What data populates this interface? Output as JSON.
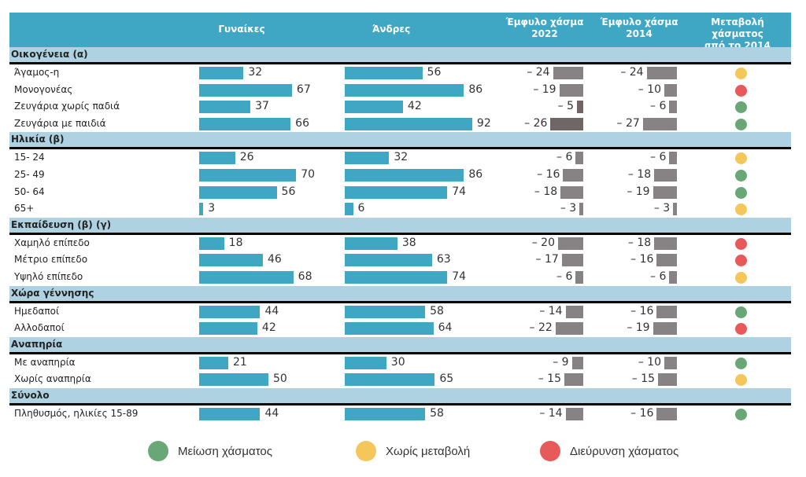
{
  "header": {
    "col_women": "Γυναίκες",
    "col_men": "Άνδρες",
    "col_gap2022_l1": "Έμφυλο χάσμα",
    "col_gap2022_l2": "2022",
    "col_gap2014_l1": "Έμφυλο χάσμα",
    "col_gap2014_l2": "2014",
    "col_change_l1": "Μεταβολή χάσματος",
    "col_change_l2": "από το 2014"
  },
  "colors": {
    "bar": "#3fa7c4",
    "gap_bar": "#878284",
    "gap_bar_dark": "#6f6665",
    "decrease": "#6aa776",
    "no_change": "#f5c75a",
    "increase": "#e85a5a"
  },
  "chart_data": {
    "type": "table",
    "title": "",
    "columns": [
      "Γυναίκες",
      "Άνδρες",
      "Έμφυλο χάσμα 2022",
      "Έμφυλο χάσμα 2014",
      "Μεταβολή χάσματος από το 2014"
    ],
    "sections": [
      {
        "name": "Οικογένεια (α)",
        "rows": [
          {
            "label": "Άγαμος-η",
            "women": 32,
            "men": 56,
            "gap2022": -24,
            "gap2014": -24,
            "change": "no_change",
            "gap2022_dark": false
          },
          {
            "label": "Μονογονέας",
            "women": 67,
            "men": 86,
            "gap2022": -19,
            "gap2014": -10,
            "change": "increase",
            "gap2022_dark": false
          },
          {
            "label": "Ζευγάρια χωρίς παδιά",
            "women": 37,
            "men": 42,
            "gap2022": -5,
            "gap2014": -6,
            "change": "decrease",
            "gap2022_dark": true
          },
          {
            "label": "Ζευγάρια με παιδιά",
            "women": 66,
            "men": 92,
            "gap2022": -26,
            "gap2014": -27,
            "change": "decrease",
            "gap2022_dark": true
          }
        ]
      },
      {
        "name": "Ηλικία (β)",
        "rows": [
          {
            "label": "15- 24",
            "women": 26,
            "men": 32,
            "gap2022": -6,
            "gap2014": -6,
            "change": "no_change"
          },
          {
            "label": "25- 49",
            "women": 70,
            "men": 86,
            "gap2022": -16,
            "gap2014": -18,
            "change": "decrease"
          },
          {
            "label": "50- 64",
            "women": 56,
            "men": 74,
            "gap2022": -18,
            "gap2014": -19,
            "change": "decrease"
          },
          {
            "label": "65+",
            "women": 3,
            "men": 6,
            "gap2022": -3,
            "gap2014": -3,
            "change": "no_change"
          }
        ]
      },
      {
        "name": "Εκπαίδευση (β) (γ)",
        "rows": [
          {
            "label": "Χαμηλό επίπεδο",
            "women": 18,
            "men": 38,
            "gap2022": -20,
            "gap2014": -18,
            "change": "increase"
          },
          {
            "label": "Μέτριο επίπεδο",
            "women": 46,
            "men": 63,
            "gap2022": -17,
            "gap2014": -16,
            "change": "increase"
          },
          {
            "label": "Υψηλό επίπεδο",
            "women": 68,
            "men": 74,
            "gap2022": -6,
            "gap2014": -6,
            "change": "no_change"
          }
        ]
      },
      {
        "name": "Χώρα γέννησης",
        "rows": [
          {
            "label": "Ημεδαποί",
            "women": 44,
            "men": 58,
            "gap2022": -14,
            "gap2014": -16,
            "change": "decrease"
          },
          {
            "label": "Αλλοδαποί",
            "women": 42,
            "men": 64,
            "gap2022": -22,
            "gap2014": -19,
            "change": "increase"
          }
        ]
      },
      {
        "name": "Αναπηρία",
        "rows": [
          {
            "label": "Με αναπηρία",
            "women": 21,
            "men": 30,
            "gap2022": -9,
            "gap2014": -10,
            "change": "decrease"
          },
          {
            "label": "Χωρίς αναπηρία",
            "women": 50,
            "men": 65,
            "gap2022": -15,
            "gap2014": -15,
            "change": "no_change"
          }
        ]
      },
      {
        "name": "Σύνολο",
        "rows": [
          {
            "label": "Πληθυσμός, ηλικίες 15-89",
            "women": 44,
            "men": 58,
            "gap2022": -14,
            "gap2014": -16,
            "change": "decrease"
          }
        ]
      }
    ],
    "legend": [
      {
        "key": "decrease",
        "label": "Μείωση χάσματος"
      },
      {
        "key": "no_change",
        "label": "Χωρίς μεταβολή"
      },
      {
        "key": "increase",
        "label": "Διεύρυνση χάσματος"
      }
    ],
    "legend_position": "bottom"
  }
}
